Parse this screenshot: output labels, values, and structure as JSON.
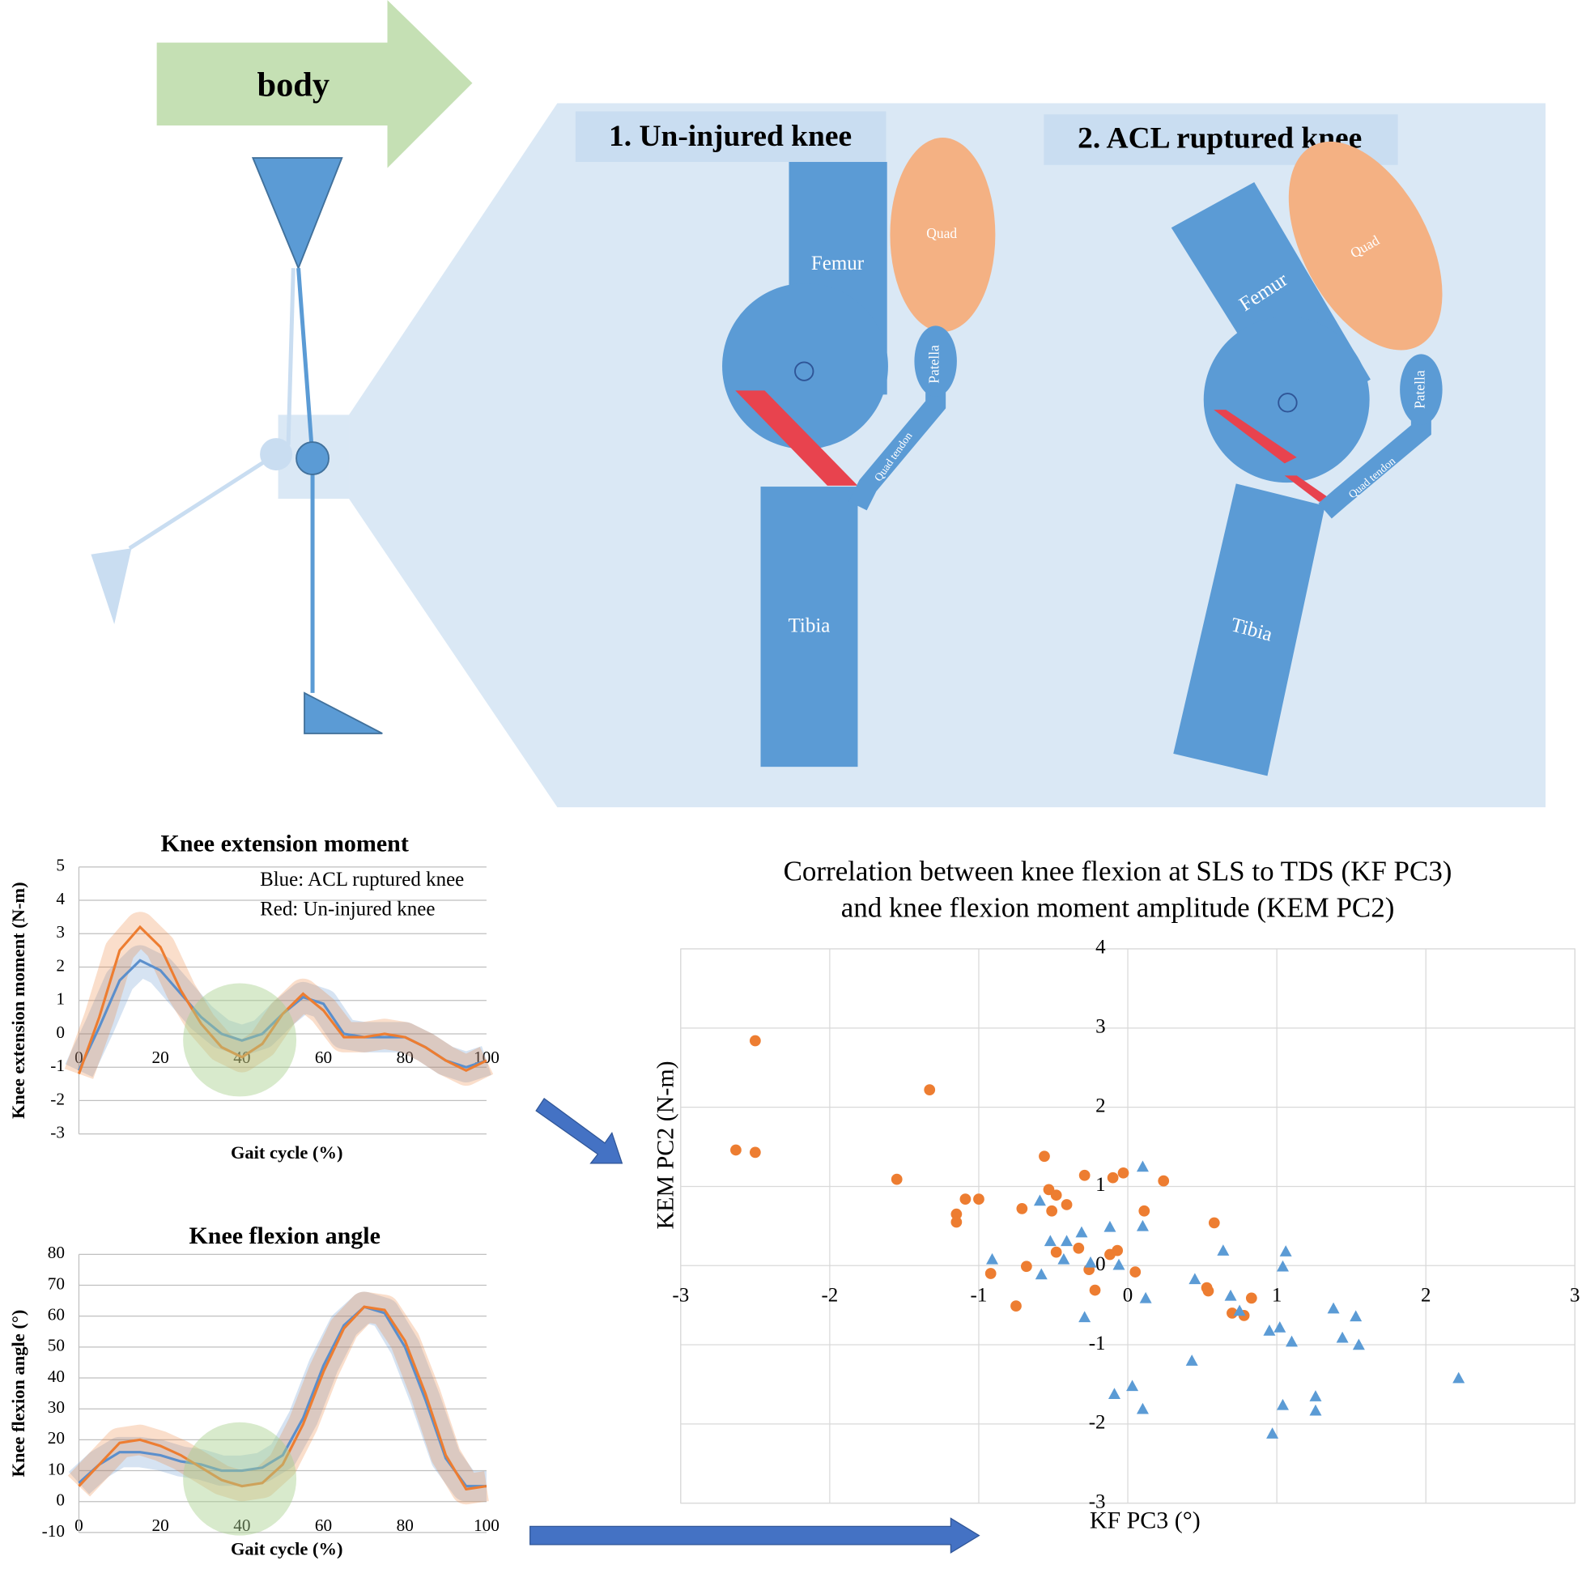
{
  "diagram": {
    "body": "body",
    "panels": [
      {
        "title": "1. Un-injured knee",
        "femur": "Femur",
        "quad": "Quad",
        "patella": "Patella",
        "tendon": "Quad tendon",
        "tibia": "Tibia"
      },
      {
        "title": "2. ACL ruptured knee",
        "femur": "Femur",
        "quad": "Quad",
        "patella": "Patella",
        "tendon": "Quad tendon",
        "tibia": "Tibia"
      }
    ]
  },
  "chart_data": [
    {
      "type": "line",
      "title": "Knee extension moment",
      "x_label": "Gait cycle (%)",
      "y_label": "Knee extension moment (N-m)",
      "annotations": [
        "Blue: ACL ruptured knee",
        "Red: Un-injured knee"
      ],
      "x": [
        0,
        5,
        10,
        15,
        20,
        25,
        30,
        35,
        40,
        45,
        50,
        55,
        60,
        65,
        70,
        75,
        80,
        85,
        90,
        95,
        100
      ],
      "series": [
        {
          "color": "#5B8FCC",
          "values": [
            -1.1,
            0.2,
            1.6,
            2.2,
            1.9,
            1.2,
            0.5,
            0,
            -0.2,
            0,
            0.6,
            1.1,
            0.9,
            0,
            -0.1,
            -0.1,
            -0.1,
            -0.4,
            -0.8,
            -1.0,
            -0.8
          ]
        },
        {
          "color": "#ED7D31",
          "values": [
            -1.2,
            0.5,
            2.5,
            3.2,
            2.6,
            1.3,
            0.3,
            -0.4,
            -0.7,
            -0.3,
            0.6,
            1.2,
            0.7,
            -0.1,
            -0.1,
            0,
            -0.1,
            -0.4,
            -0.8,
            -1.1,
            -0.8
          ]
        }
      ],
      "xlim": [
        0,
        100
      ],
      "xticks": [
        0,
        20,
        40,
        60,
        80,
        100
      ],
      "ylim": [
        -3,
        5
      ],
      "yticks": [
        -3,
        -2,
        -1,
        0,
        1,
        2,
        3,
        4,
        5
      ],
      "grid": true
    },
    {
      "type": "line",
      "title": "Knee flexion angle",
      "x_label": "Gait cycle (%)",
      "y_label": "Knee flexion angle (°)",
      "x": [
        0,
        5,
        10,
        15,
        20,
        25,
        30,
        35,
        40,
        45,
        50,
        55,
        60,
        65,
        70,
        75,
        80,
        85,
        90,
        95,
        100
      ],
      "series": [
        {
          "color": "#5B8FCC",
          "values": [
            6,
            12,
            16,
            16,
            15,
            13,
            12,
            10,
            10,
            11,
            15,
            27,
            44,
            57,
            63,
            61,
            50,
            33,
            14,
            5,
            5
          ]
        },
        {
          "color": "#ED7D31",
          "values": [
            5,
            12,
            19,
            20,
            18,
            15,
            11,
            7,
            5,
            6,
            12,
            25,
            42,
            56,
            63,
            62,
            52,
            35,
            15,
            4,
            5
          ]
        }
      ],
      "xlim": [
        0,
        100
      ],
      "xticks": [
        0,
        20,
        40,
        60,
        80,
        100
      ],
      "ylim": [
        -10,
        80
      ],
      "yticks": [
        -10,
        0,
        10,
        20,
        30,
        40,
        50,
        60,
        70,
        80
      ],
      "grid": true
    },
    {
      "type": "scatter",
      "title": [
        "Correlation between knee flexion at SLS to TDS (KF PC3)",
        "and knee flexion moment amplitude (KEM PC2)"
      ],
      "x_label": "KF PC3 (°)",
      "y_label": "KEM PC2 (N-m)",
      "series": [
        {
          "color": "#ED7D31",
          "marker": "circle",
          "x": [
            -2.5,
            -2.63,
            -2.5,
            -1.33,
            -1.55,
            -1.15,
            -1.15,
            -1.09,
            -1.0,
            -0.71,
            -0.56,
            -0.53,
            -0.48,
            -0.51,
            -0.41,
            -0.29,
            -0.33,
            -0.48,
            -0.68,
            -0.92,
            -0.75,
            -0.26,
            -0.22,
            -0.12,
            -0.07,
            -0.1,
            -0.03,
            0.05,
            0.11,
            0.24,
            0.58,
            0.53,
            0.54,
            0.7,
            0.78,
            0.83
          ],
          "values": [
            2.84,
            1.46,
            1.43,
            2.22,
            1.09,
            0.65,
            0.55,
            0.84,
            0.84,
            0.72,
            1.38,
            0.96,
            0.89,
            0.69,
            0.77,
            1.14,
            0.22,
            0.17,
            -0.01,
            -0.1,
            -0.51,
            -0.05,
            -0.31,
            0.14,
            0.19,
            1.11,
            1.17,
            -0.08,
            0.69,
            1.07,
            0.54,
            -0.28,
            -0.32,
            -0.6,
            -0.63,
            -0.41
          ]
        },
        {
          "color": "#5B9BD5",
          "marker": "triangle",
          "x": [
            -0.91,
            -0.59,
            -0.58,
            -0.52,
            -0.43,
            -0.41,
            -0.31,
            -0.25,
            -0.29,
            -0.12,
            -0.06,
            0.1,
            0.1,
            0.12,
            -0.09,
            0.03,
            0.1,
            0.43,
            0.45,
            0.64,
            0.69,
            0.75,
            0.95,
            1.02,
            1.04,
            1.06,
            1.1,
            1.04,
            0.97,
            1.26,
            1.26,
            1.38,
            1.44,
            1.53,
            1.55,
            2.22
          ],
          "values": [
            0.08,
            0.82,
            -0.11,
            0.31,
            0.08,
            0.31,
            0.42,
            0.04,
            -0.65,
            0.49,
            0.01,
            1.25,
            0.5,
            -0.41,
            -1.62,
            -1.52,
            -1.81,
            -1.2,
            -0.17,
            0.19,
            -0.38,
            -0.57,
            -0.82,
            -0.78,
            -0.01,
            0.18,
            -0.96,
            -1.76,
            -2.12,
            -1.65,
            -1.83,
            -0.54,
            -0.91,
            -0.64,
            -1.0,
            -1.42
          ]
        }
      ],
      "xlim": [
        -3,
        3
      ],
      "xticks": [
        -3,
        -2,
        -1,
        0,
        1,
        2,
        3
      ],
      "ylim": [
        -3,
        4
      ],
      "yticks": [
        -3,
        -2,
        -1,
        0,
        1,
        2,
        3,
        4
      ],
      "grid": true
    }
  ]
}
